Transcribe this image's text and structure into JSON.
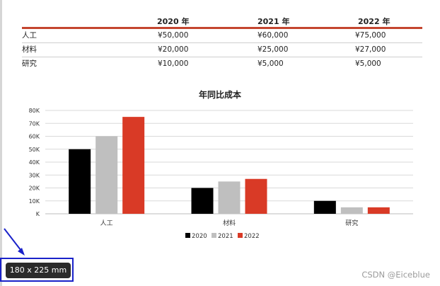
{
  "table": {
    "headers": [
      "",
      "2020 年",
      "2021 年",
      "2022 年"
    ],
    "rows": [
      {
        "label": "人工",
        "values": [
          "¥50,000",
          "¥60,000",
          "¥75,000"
        ]
      },
      {
        "label": "材料",
        "values": [
          "¥20,000",
          "¥25,000",
          "¥27,000"
        ]
      },
      {
        "label": "研究",
        "values": [
          "¥10,000",
          "¥5,000",
          "¥5,000"
        ]
      }
    ]
  },
  "chart_data": {
    "type": "bar",
    "title": "年同比成本",
    "categories": [
      "人工",
      "材料",
      "研究"
    ],
    "series": [
      {
        "name": "2020",
        "values": [
          50000,
          20000,
          10000
        ],
        "color": "#000000"
      },
      {
        "name": "2021",
        "values": [
          60000,
          25000,
          5000
        ],
        "color": "#bfbfbf"
      },
      {
        "name": "2022",
        "values": [
          75000,
          27000,
          5000
        ],
        "color": "#d93a26"
      }
    ],
    "ylim": [
      0,
      80000
    ],
    "yticks": [
      "K",
      "10K",
      "20K",
      "30K",
      "40K",
      "50K",
      "60K",
      "70K",
      "80K"
    ],
    "grid": true,
    "legend_position": "bottom"
  },
  "size_badge": "180 x 225 mm",
  "watermark": "CSDN @Eiceblue",
  "colors": {
    "table_rule": "#c4452f",
    "badge_border": "#1a22c9",
    "arrow": "#1a22c9"
  }
}
